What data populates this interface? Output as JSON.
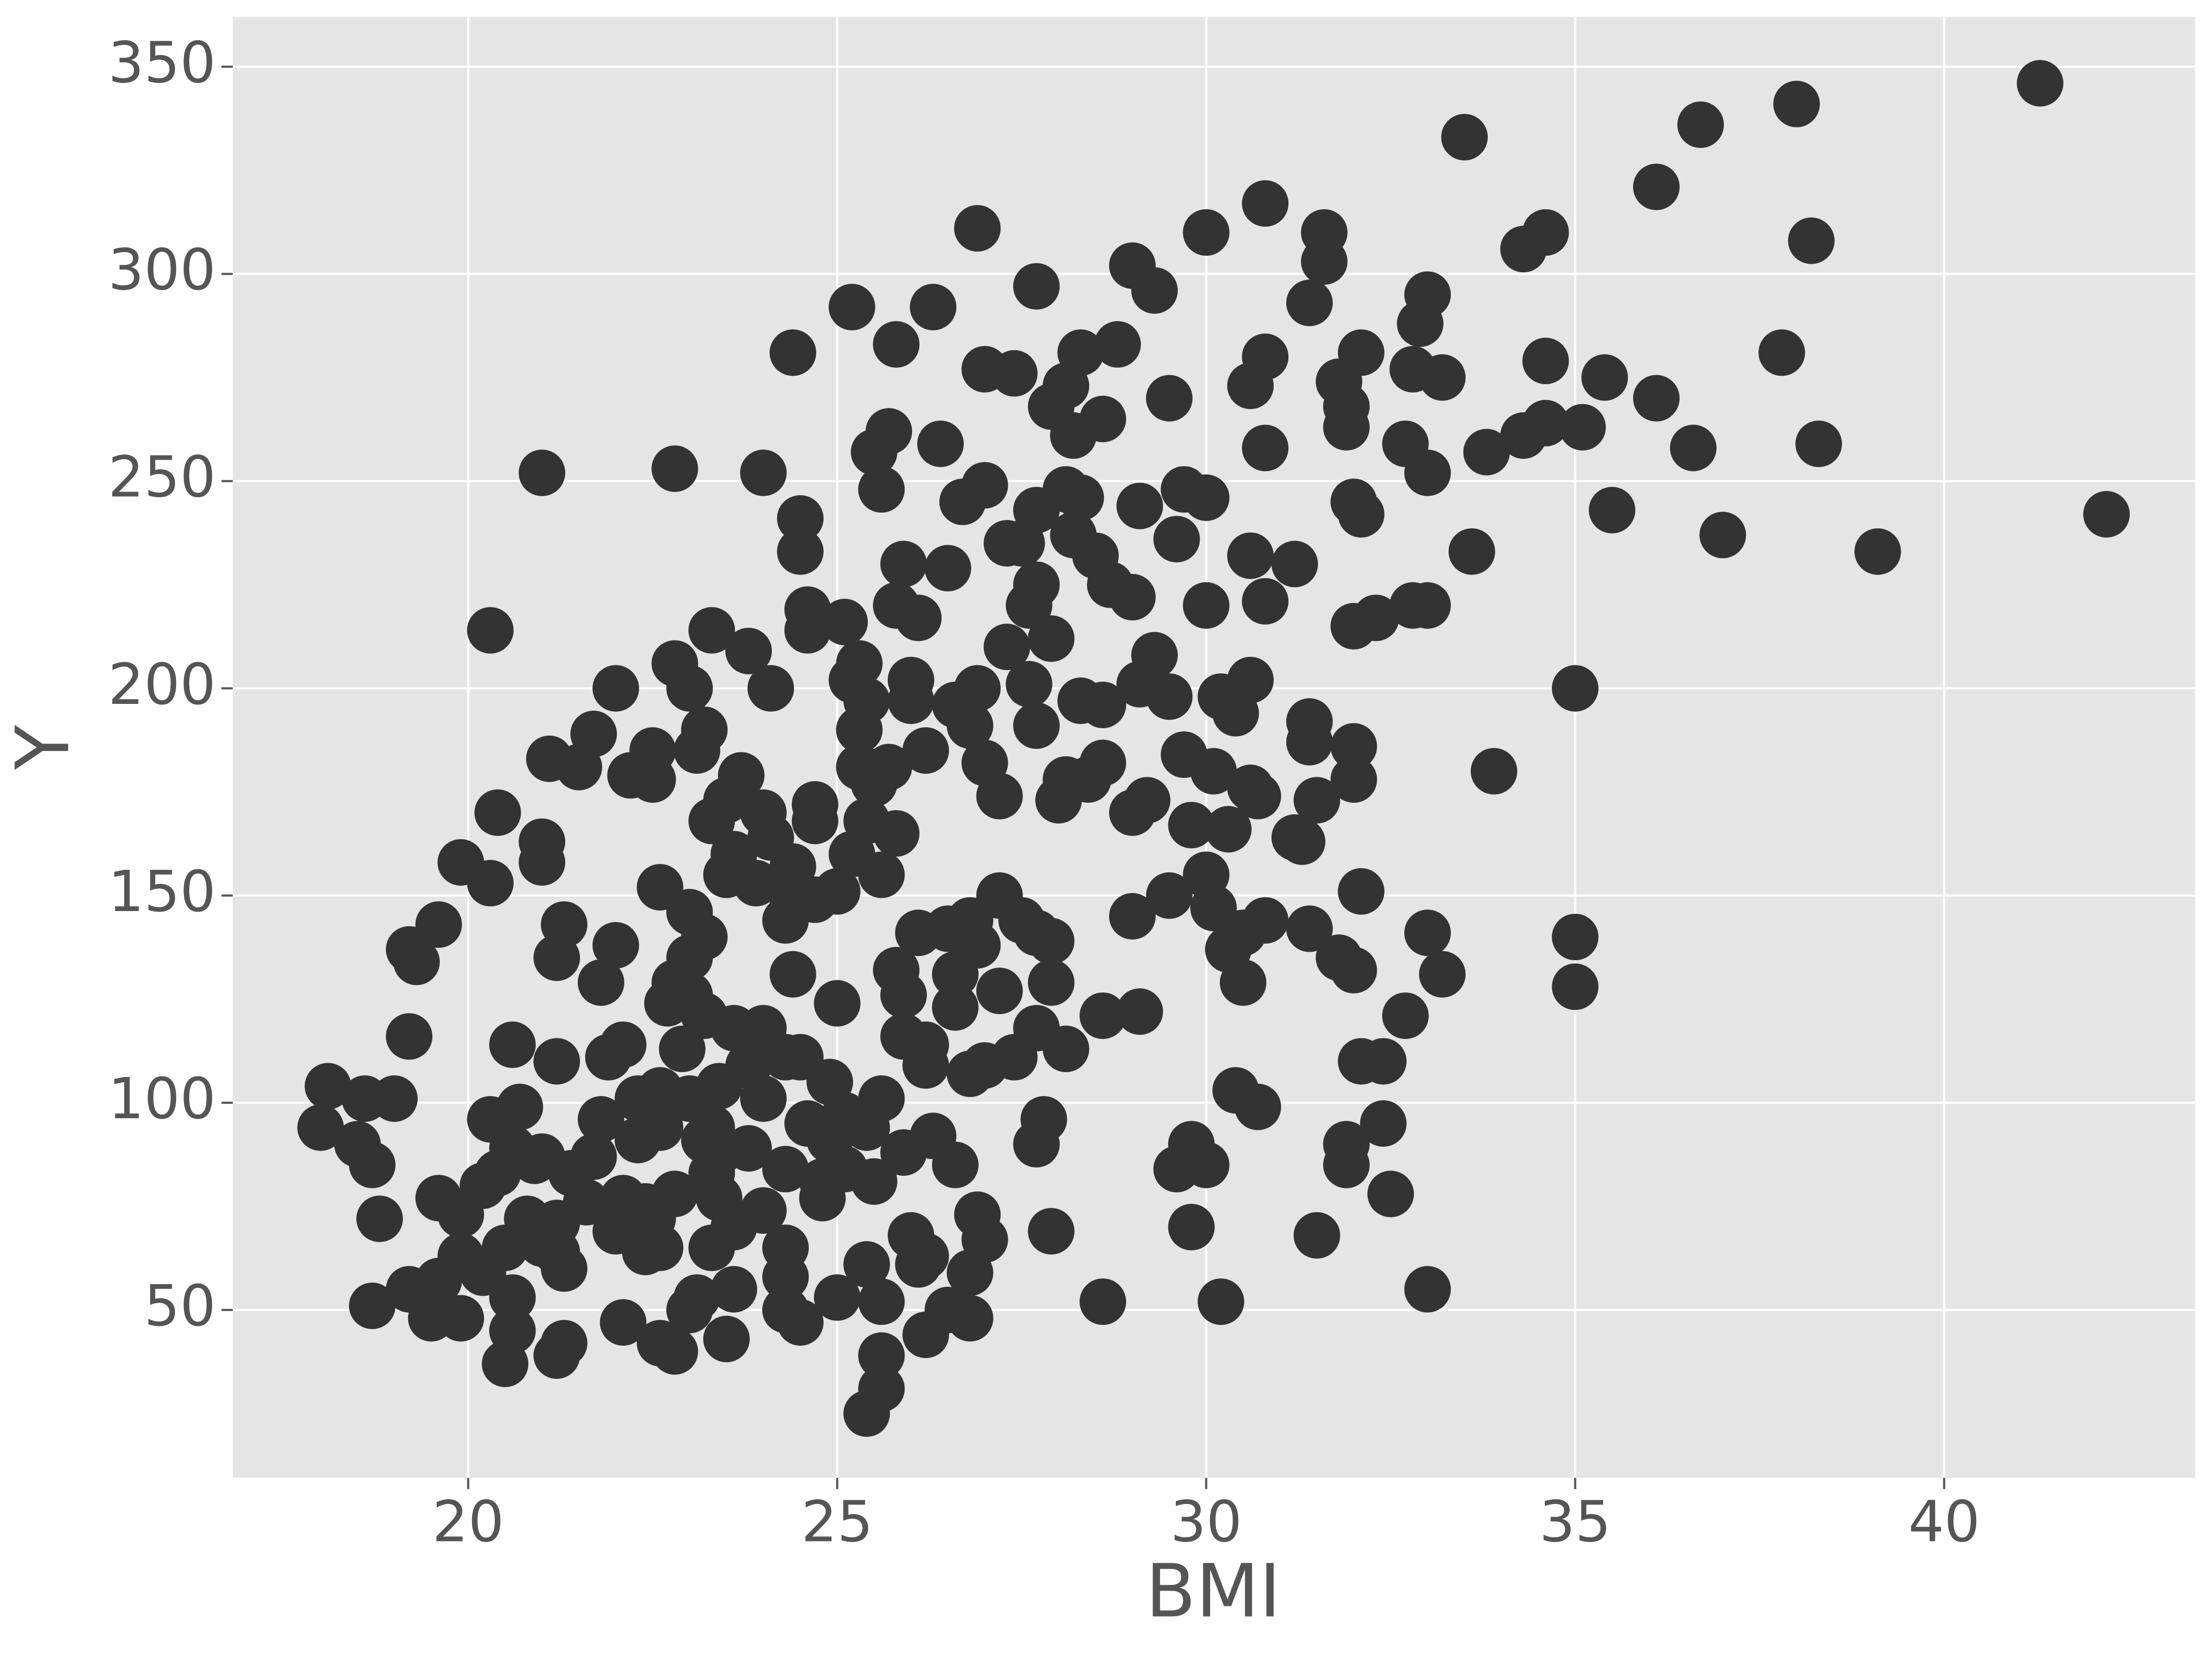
{
  "chart_data": {
    "type": "scatter",
    "x_label": "BMI",
    "y_label": "Y",
    "color": "#333333",
    "grid": true,
    "xlim": [
      16.81,
      43.4
    ],
    "ylim": [
      9.5,
      362
    ],
    "xticks": [
      20,
      25,
      30,
      35,
      40
    ],
    "yticks": [
      50,
      100,
      150,
      200,
      250,
      300,
      350
    ],
    "x": [
      41.3,
      38.0,
      36.7,
      33.5,
      36.1,
      38.2,
      30.8,
      26.9,
      30.0,
      31.6,
      34.6,
      34.3,
      31.6,
      29.0,
      29.3,
      27.7,
      33.0,
      25.2,
      26.3,
      31.4,
      32.9,
      28.8,
      25.8,
      24.4,
      28.3,
      32.1,
      37.8,
      30.8,
      27.0,
      27.4,
      32.8,
      33.2,
      35.4,
      34.6,
      31.8,
      30.6,
      28.1,
      36.1,
      29.5,
      27.9,
      31.9,
      28.6,
      34.6,
      35.1,
      31.9,
      25.7,
      34.3,
      28.2,
      26.4,
      32.7,
      38.3,
      33.8,
      30.8,
      25.5,
      36.6,
      21.0,
      22.8,
      24.0,
      33.0,
      25.6,
      29.7,
      27.0,
      28.1,
      30.0,
      28.3,
      26.7,
      29.1,
      32.0,
      42.2,
      27.7,
      32.1,
      35.5,
      24.5,
      28.2,
      37.0,
      29.6,
      27.3,
      27.5,
      24.5,
      30.6,
      33.6,
      39.1,
      28.5,
      25.9,
      31.2,
      26.5,
      27.7,
      28.7,
      29.0,
      30.8,
      27.6,
      30.0,
      32.8,
      33.0,
      25.8,
      26.1,
      24.6,
      32.3,
      25.1,
      32.0,
      20.3,
      23.3,
      24.6,
      27.9,
      27.3,
      23.8,
      29.3,
      22.8,
      25.3,
      26.0,
      25.2,
      30.6,
      35.0,
      22.0,
      23.0,
      24.1,
      26.9,
      27.6,
      25.4,
      26.0,
      28.3,
      29.5,
      30.2,
      29.1,
      28.6,
      26.6,
      30.4,
      31.4,
      27.7,
      26.8,
      23.2,
      25.3,
      21.7,
      31.4,
      32.0,
      22.5,
      23.1,
      26.2,
      29.7,
      21.1,
      27.0,
      28.6,
      21.5,
      25.3,
      25.7,
      30.1,
      33.9,
      23.7,
      22.2,
      22.5,
      28.4,
      28.1,
      32.0,
      25.5,
      30.6,
      30.7,
      27.2,
      28.0,
      31.5,
      29.2,
      20.4,
      23.5,
      24.7,
      29.0,
      24.0,
      23.3,
      24.7,
      25.4,
      29.8,
      30.3,
      25.8,
      24.1,
      31.2,
      31.3,
      21.0,
      23.6,
      25.2,
      19.9,
      21.0,
      24.4,
      25.6,
      30.0,
      23.5,
      20.3,
      23.9,
      25.0,
      32.1,
      22.6,
      24.7,
      29.5,
      27.2,
      24.4,
      30.1,
      23.0,
      24.3,
      29.0,
      30.8,
      19.6,
      21.3,
      27.5,
      26.5,
      26.8,
      26.1,
      31.4,
      33.0,
      35.0,
      30.5,
      23.2,
      27.7,
      27.9,
      19.2,
      30.3,
      26.9,
      22.0,
      31.8,
      19.3,
      21.2,
      23.0,
      25.8,
      24.4,
      32.0,
      33.2,
      26.6,
      30.5,
      21.8,
      22.8,
      27.9,
      35.0,
      27.2,
      25.9,
      23.0,
      25.0,
      22.7,
      26.6,
      28.6,
      29.1,
      32.7,
      23.2,
      23.6,
      24.0,
      27.7,
      25.9,
      19.2,
      20.6,
      22.1,
      26.2,
      28.1,
      22.9,
      27.4,
      21.9,
      24.3,
      21.2,
      32.1,
      32.4,
      23.8,
      26.2,
      27.0,
      24.5,
      26.8,
      24.9,
      23.4,
      18.1,
      30.4,
      22.6,
      19.0,
      18.6,
      22.3,
      23.0,
      24.0,
      25.6,
      30.7,
      20.7,
      21.8,
      20.3,
      27.8,
      32.4,
      18.0,
      25.1,
      24.6,
      23.3,
      25.4,
      22.6,
      26.3,
      22.3,
      23.2,
      24.9,
      18.5,
      29.8,
      27.7,
      31.9,
      23.8,
      20.6,
      21.7,
      21.0,
      25.9,
      23.4,
      18.7,
      20.9,
      26.6,
      30.0,
      31.9,
      29.6,
      25.1,
      24.3,
      21.4,
      20.4,
      23.3,
      24.8,
      25.5,
      20.2,
      32.5,
      22.8,
      23.4,
      19.6,
      24.8,
      22.1,
      21.6,
      22.4,
      24.0,
      19.9,
      26.9,
      18.8,
      20.8,
      22.5,
      21.2,
      23.6,
      29.8,
      22.0,
      27.9,
      26.0,
      31.5,
      27.0,
      21.0,
      20.5,
      23.3,
      24.3,
      22.6,
      22.4,
      21.2,
      26.2,
      19.9,
      25.4,
      26.1,
      21.3,
      26.8,
      20.2,
      24.3,
      19.6,
      23.6,
      19.2,
      33.0,
      25.0,
      23.1,
      20.6,
      25.6,
      28.6,
      30.2,
      18.7,
      23.0,
      24.3,
      26.5,
      19.5,
      19.9,
      26.8,
      22.1,
      24.5,
      20.6,
      26.2,
      21.3,
      23.5,
      22.6,
      22.8,
      21.2,
      25.6,
      20.5,
      25.6,
      25.4
    ],
    "values": [
      346,
      341,
      336,
      333,
      321,
      308,
      317,
      311,
      310,
      310,
      310,
      306,
      303,
      302,
      296,
      297,
      295,
      292,
      292,
      293,
      288,
      283,
      283,
      281,
      281,
      281,
      281,
      280,
      277,
      276,
      277,
      275,
      275,
      279,
      274,
      273,
      273,
      270,
      270,
      268,
      268,
      265,
      264,
      263,
      263,
      262,
      261,
      261,
      259,
      259,
      259,
      257,
      258,
      257,
      258,
      252,
      253,
      252,
      252,
      248,
      248,
      249,
      248,
      246,
      246,
      245,
      244,
      245,
      242,
      243,
      242,
      243,
      241,
      237,
      237,
      236,
      235,
      235,
      233,
      232,
      233,
      233,
      232,
      230,
      230,
      229,
      225,
      225,
      222,
      221,
      220,
      220,
      220,
      220,
      220,
      217,
      219,
      217,
      216,
      215,
      214,
      214,
      214,
      212,
      210,
      209,
      208,
      206,
      206,
      202,
      202,
      202,
      200,
      200,
      200,
      200,
      200,
      201,
      197,
      197,
      197,
      198,
      198,
      201,
      196,
      196,
      194,
      192,
      191,
      191,
      190,
      190,
      189,
      187,
      186,
      185,
      185,
      185,
      184,
      183,
      182,
      182,
      181,
      181,
      181,
      180,
      180,
      179,
      179,
      178,
      178,
      178,
      178,
      177,
      176,
      174,
      174,
      173,
      173,
      173,
      170,
      173,
      172,
      170,
      170,
      168,
      168,
      168,
      167,
      166,
      165,
      164,
      164,
      163,
      163,
      160,
      160,
      158,
      158,
      157,
      155,
      155,
      155,
      153,
      153,
      151,
      151,
      152,
      149,
      150,
      150,
      148,
      147,
      146,
      144,
      145,
      144,
      143,
      143,
      144,
      142,
      144,
      141,
      142,
      141,
      140,
      141,
      140,
      141,
      139,
      137,
      137,
      138,
      138,
      135,
      134,
      135,
      135,
      132,
      131,
      132,
      131,
      131,
      129,
      129,
      129,
      129,
      128,
      127,
      126,
      126,
      124,
      124,
      123,
      121,
      122,
      121,
      121,
      118,
      118,
      118,
      116,
      116,
      114,
      114,
      114,
      113,
      113,
      111,
      111,
      111,
      110,
      110,
      110,
      109,
      109,
      109,
      111,
      107,
      105,
      104,
      104,
      103,
      103,
      101,
      101,
      101,
      101,
      101,
      101,
      99,
      99,
      96,
      96,
      96,
      95,
      94,
      97,
      95,
      94,
      94,
      94,
      92,
      91,
      91,
      91,
      90,
      90,
      90,
      90,
      89,
      89,
      87,
      87,
      88,
      88,
      85,
      86,
      85,
      85,
      85,
      84,
      84,
      84,
      83,
      83,
      83,
      81,
      81,
      80,
      78,
      78,
      77,
      77,
      77,
      77,
      76,
      75,
      74,
      73,
      73,
      72,
      72,
      72,
      71,
      70,
      70,
      69,
      69,
      68,
      68,
      67,
      66,
      65,
      65,
      65,
      65,
      64,
      64,
      63,
      63,
      61,
      61,
      60,
      59,
      59,
      58,
      57,
      55,
      55,
      55,
      53,
      53,
      53,
      52,
      52,
      52,
      51,
      50,
      50,
      50,
      48,
      48,
      48,
      47,
      47,
      45,
      44,
      42,
      43,
      42,
      40,
      39,
      39,
      37,
      31,
      25
    ]
  }
}
